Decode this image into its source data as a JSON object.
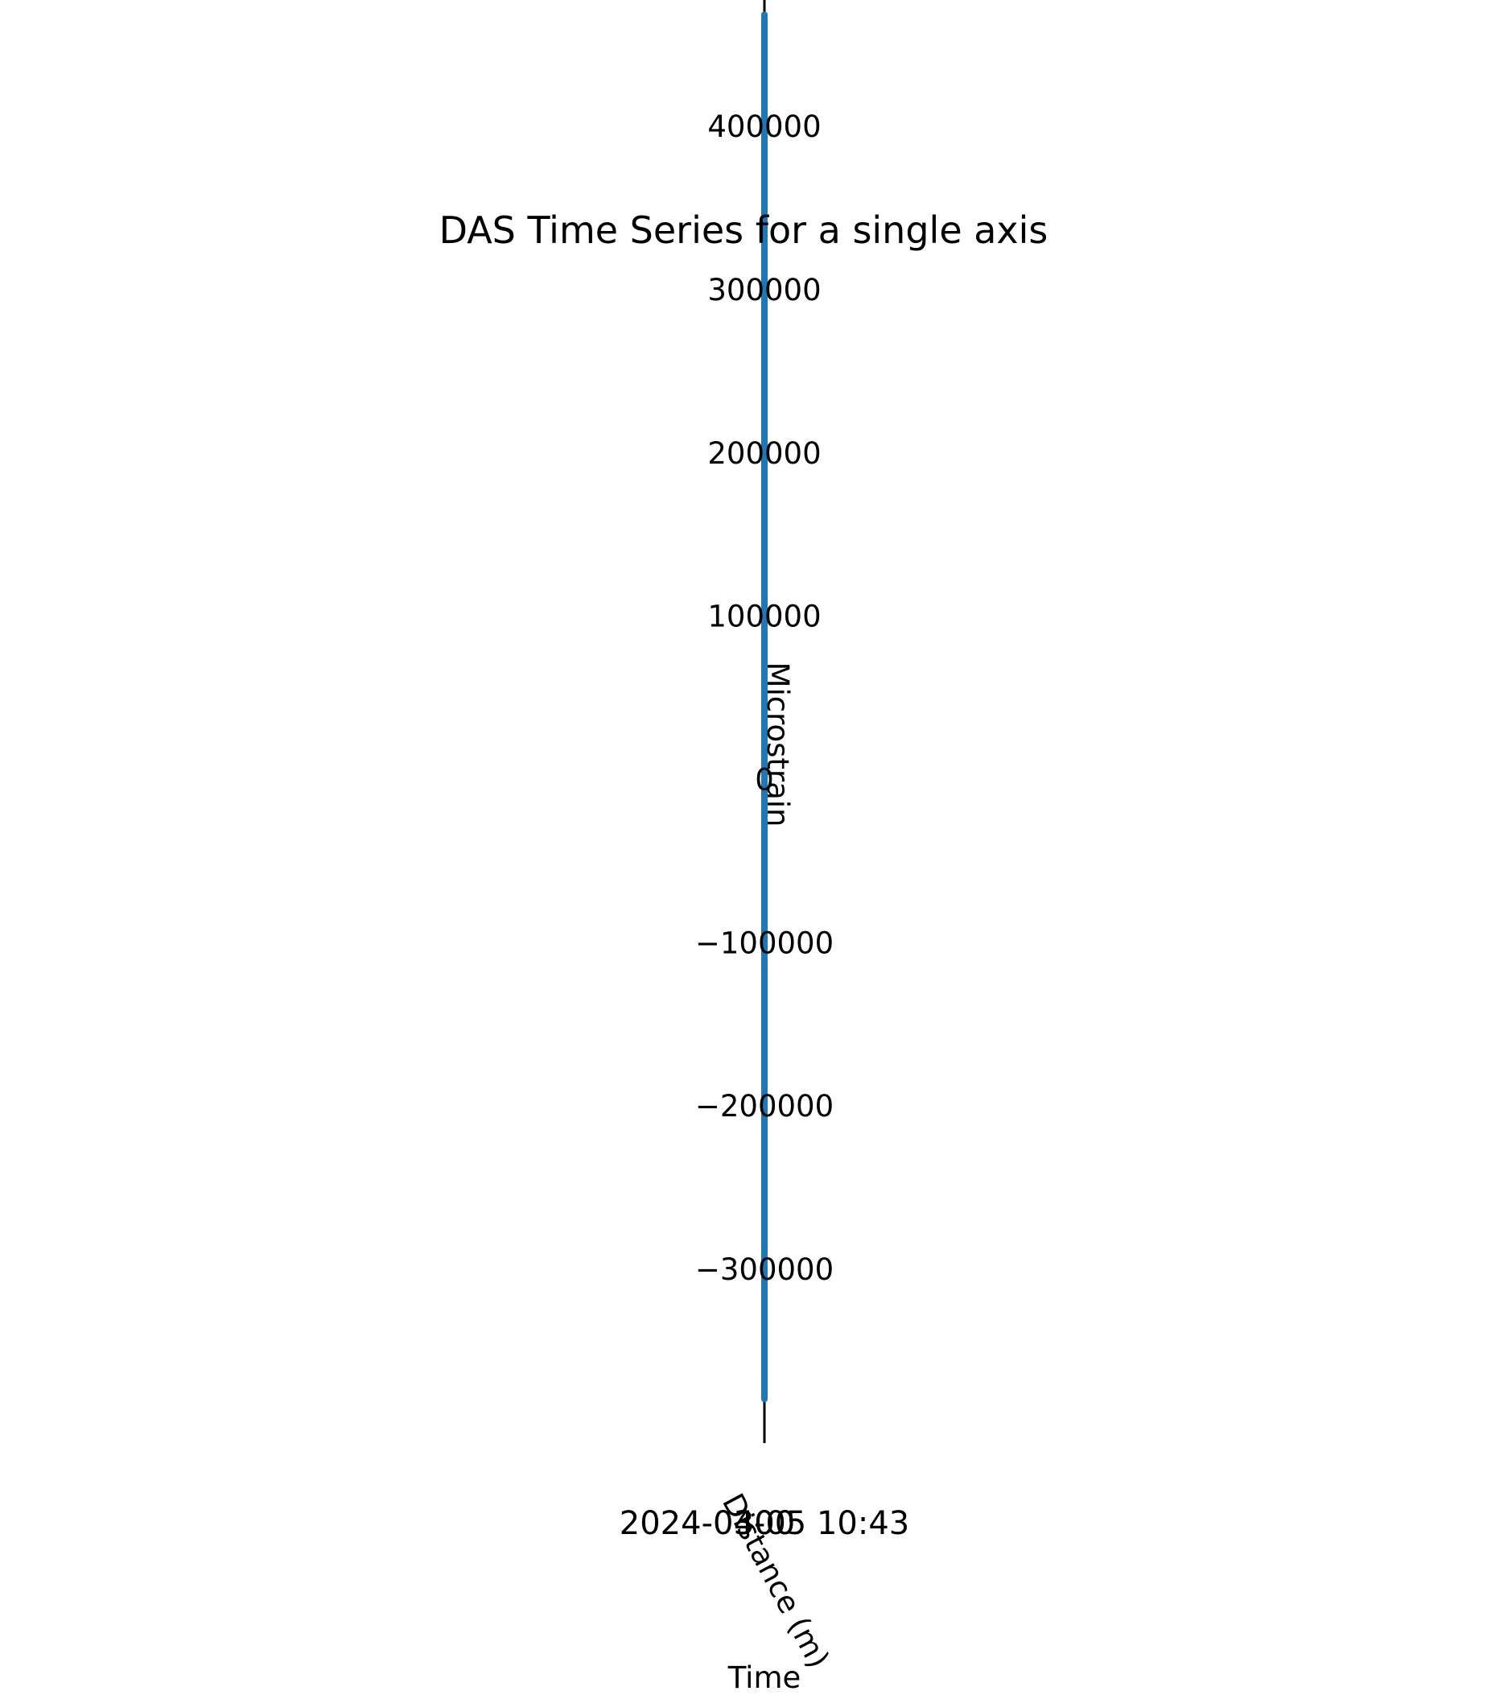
{
  "chart_data": {
    "type": "line",
    "title": "DAS Time Series for a single axis",
    "xlabel": "Time",
    "ylabel": "Microstrain",
    "overlapping_label": "Distance (m)",
    "x_tick_labels": [
      "2024-03-05 10:43",
      "300",
      "400"
    ],
    "y_ticks": [
      400000,
      300000,
      200000,
      100000,
      0,
      -100000,
      -200000,
      -300000
    ],
    "y_tick_labels": [
      "400000",
      "300000",
      "200000",
      "100000",
      "0",
      "−100000",
      "−200000",
      "−300000"
    ],
    "ylim": [
      -407000,
      477000
    ],
    "grid": false,
    "series": [
      {
        "color": "#1f77b4",
        "y_range": [
          -380000,
          468000
        ]
      }
    ]
  }
}
